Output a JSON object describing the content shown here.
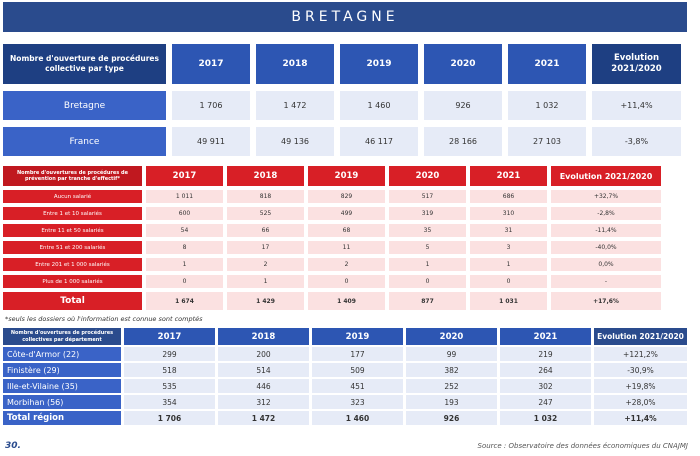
{
  "banner": "BRETAGNE",
  "table1": {
    "header_label": "Nombre d'ouverture de procédures collective par type",
    "years": [
      "2017",
      "2018",
      "2019",
      "2020",
      "2021"
    ],
    "evolution_label": "Evolution 2021/2020",
    "rows": [
      {
        "label": "Bretagne",
        "values": [
          "1 706",
          "1 472",
          "1 460",
          "926",
          "1 032"
        ],
        "evolution": "+11,4%"
      },
      {
        "label": "France",
        "values": [
          "49 911",
          "49 136",
          "46 117",
          "28 166",
          "27 103"
        ],
        "evolution": "-3,8%"
      }
    ]
  },
  "table2": {
    "header_label": "Nombre d'ouvertures de procédures de prévention par tranche d'effectif*",
    "years": [
      "2017",
      "2018",
      "2019",
      "2020",
      "2021"
    ],
    "evolution_label": "Evolution 2021/2020",
    "rows": [
      {
        "label": "Aucun salarié",
        "values": [
          "1 011",
          "818",
          "829",
          "517",
          "686"
        ],
        "evolution": "+32,7%"
      },
      {
        "label": "Entre 1 et 10 salariés",
        "values": [
          "600",
          "525",
          "499",
          "319",
          "310"
        ],
        "evolution": "-2,8%"
      },
      {
        "label": "Entre 11 et 50 salariés",
        "values": [
          "54",
          "66",
          "68",
          "35",
          "31"
        ],
        "evolution": "-11,4%"
      },
      {
        "label": "Entre 51 et 200 salariés",
        "values": [
          "8",
          "17",
          "11",
          "5",
          "3"
        ],
        "evolution": "-40,0%"
      },
      {
        "label": "Entre 201 et 1 000 salariés",
        "values": [
          "1",
          "2",
          "2",
          "1",
          "1"
        ],
        "evolution": "0,0%"
      },
      {
        "label": "Plus de 1 000 salariés",
        "values": [
          "0",
          "1",
          "0",
          "0",
          "0"
        ],
        "evolution": "-"
      }
    ],
    "total": {
      "label": "Total",
      "values": [
        "1 674",
        "1 429",
        "1 409",
        "877",
        "1 031"
      ],
      "evolution": "+17,6%"
    },
    "note": "*seuls les dossiers où l'information est connue sont comptés"
  },
  "table3": {
    "header_label": "Nombre d'ouvertures de procédures collectives par département",
    "years": [
      "2017",
      "2018",
      "2019",
      "2020",
      "2021"
    ],
    "evolution_label": "Evolution 2021/2020",
    "rows": [
      {
        "label": "Côte-d'Armor (22)",
        "values": [
          "299",
          "200",
          "177",
          "99",
          "219"
        ],
        "evolution": "+121,2%"
      },
      {
        "label": "Finistère (29)",
        "values": [
          "518",
          "514",
          "509",
          "382",
          "264"
        ],
        "evolution": "-30,9%"
      },
      {
        "label": "Ille-et-Vilaine (35)",
        "values": [
          "535",
          "446",
          "451",
          "252",
          "302"
        ],
        "evolution": "+19,8%"
      },
      {
        "label": "Morbihan (56)",
        "values": [
          "354",
          "312",
          "323",
          "193",
          "247"
        ],
        "evolution": "+28,0%"
      }
    ],
    "total": {
      "label": "Total région",
      "values": [
        "1 706",
        "1 472",
        "1 460",
        "926",
        "1 032"
      ],
      "evolution": "+11,4%"
    }
  },
  "footer": {
    "page_number": "30.",
    "source": "Source : Observatoire des données économiques du CNAJMJ"
  }
}
